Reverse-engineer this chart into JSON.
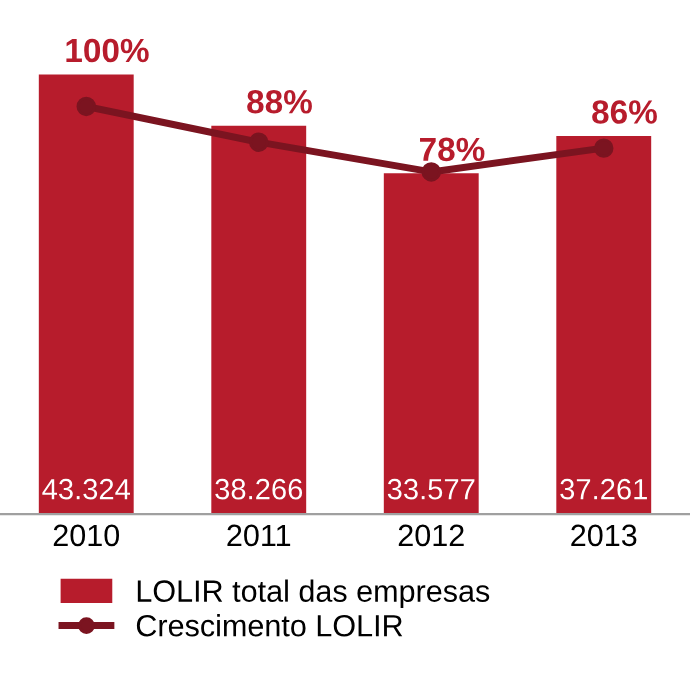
{
  "chart_data": {
    "type": "bar",
    "categories": [
      "2010",
      "2011",
      "2012",
      "2013"
    ],
    "series": [
      {
        "name": "LOLIR total das empresas",
        "color": "#b71c2c",
        "values": [
          43324,
          38266,
          33577,
          37261
        ],
        "value_labels": [
          "43.324",
          "38.266",
          "33.577",
          "37.261"
        ]
      },
      {
        "name": "Crescimento LOLIR",
        "type": "line",
        "axis": "y2",
        "color": "#7b1420",
        "marker": "circle",
        "values": [
          100,
          88,
          78,
          86
        ],
        "value_labels": [
          "100%",
          "88%",
          "78%",
          "86%"
        ]
      }
    ],
    "legend": "bottom",
    "grid": false
  }
}
